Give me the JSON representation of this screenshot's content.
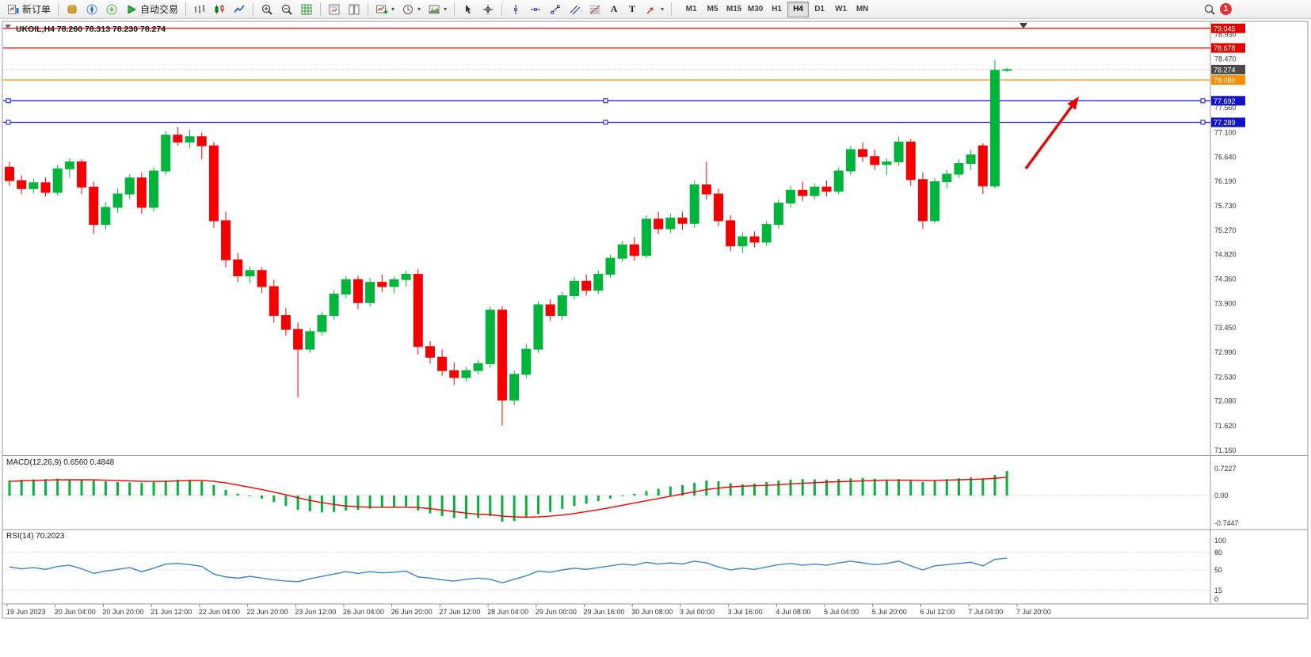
{
  "toolbar": {
    "items": [
      {
        "name": "new-order-button",
        "icon": "new-order",
        "label": "新订单"
      },
      {
        "sep": true
      },
      {
        "name": "market-watch-button",
        "icon": "market-watch"
      },
      {
        "name": "navigator-button",
        "icon": "navigator"
      },
      {
        "name": "terminal-button",
        "icon": "terminal"
      },
      {
        "name": "autotrading-button",
        "icon": "autotrading",
        "label": "自动交易"
      },
      {
        "sep": true
      },
      {
        "name": "bar-chart-button",
        "icon": "chart-bars"
      },
      {
        "name": "candlestick-chart-button",
        "icon": "chart-candles"
      },
      {
        "name": "line-chart-button",
        "icon": "chart-line"
      },
      {
        "sep": true
      },
      {
        "name": "zoom-in-button",
        "icon": "zoom-in"
      },
      {
        "name": "zoom-out-button",
        "icon": "zoom-out"
      },
      {
        "name": "grid-button",
        "icon": "grid"
      },
      {
        "sep": true
      },
      {
        "name": "tile-windows-button",
        "icon": "tile-1"
      },
      {
        "name": "cascade-windows-button",
        "icon": "tile-2"
      },
      {
        "sep": true
      },
      {
        "name": "new-chart-button",
        "icon": "new-chart",
        "caret": true
      },
      {
        "name": "periods-button",
        "icon": "periods",
        "caret": true
      },
      {
        "name": "templates-button",
        "icon": "template",
        "caret": true
      },
      {
        "sep": true
      },
      {
        "name": "cursor-button",
        "icon": "cursor"
      },
      {
        "name": "crosshair-button",
        "icon": "crosshair"
      },
      {
        "sep": true
      },
      {
        "name": "vertical-line-button",
        "icon": "vline-tool"
      },
      {
        "name": "horizontal-line-button",
        "icon": "hline-tool"
      },
      {
        "name": "trendline-button",
        "icon": "trendline-tool"
      },
      {
        "name": "channel-button",
        "icon": "channel-tool"
      },
      {
        "name": "fibonacci-button",
        "icon": "fibo-tool"
      },
      {
        "name": "text-button",
        "glyph": "A"
      },
      {
        "name": "label-button",
        "glyph": "T"
      },
      {
        "name": "shapes-button",
        "icon": "shapes-tool",
        "caret": true
      },
      {
        "sep": true
      }
    ],
    "timeframes": [
      "M1",
      "M5",
      "M15",
      "M30",
      "H1",
      "H4",
      "D1",
      "W1",
      "MN"
    ],
    "active_timeframe": "H4",
    "caret_glyph": "▾",
    "notification_count": "1"
  },
  "chart_data": [
    {
      "type": "candlestick",
      "symbol": "UKOIL",
      "period": "H4",
      "ohlc_title": "UKOIL,H4 78.260 78.313 78.230 78.274",
      "ylim": [
        71.1,
        79.16
      ],
      "up_color": "#00b43c",
      "down_color": "#f40000",
      "price_ticks": [
        78.93,
        78.47,
        77.56,
        77.1,
        76.64,
        76.19,
        75.73,
        75.27,
        74.82,
        74.36,
        73.9,
        73.45,
        72.99,
        72.53,
        72.08,
        71.62,
        71.16
      ],
      "hlines": [
        {
          "price": 79.045,
          "label": "79.045",
          "color": "#e60000",
          "selected": false
        },
        {
          "price": 78.678,
          "label": "78.678",
          "color": "#e60000",
          "selected": false
        },
        {
          "price": 78.08,
          "label": "78.080",
          "color": "#ff8a00",
          "selected": false
        },
        {
          "price": 77.692,
          "label": "77.692",
          "color": "#1212c8",
          "selected": true
        },
        {
          "price": 77.289,
          "label": "77.289",
          "color": "#1212c8",
          "selected": true
        }
      ],
      "last_price": {
        "price": 78.274,
        "label": "78.274",
        "badge_color": "#4a4a4a"
      },
      "annotations": [
        {
          "type": "arrow",
          "color": "#e60000",
          "from": [
            1295,
            213
          ],
          "to": [
            1362,
            122
          ]
        }
      ],
      "candles": [
        [
          76.45,
          76.55,
          76.1,
          76.2
        ],
        [
          76.2,
          76.3,
          75.95,
          76.05
        ],
        [
          76.05,
          76.24,
          75.96,
          76.16
        ],
        [
          76.16,
          76.26,
          75.9,
          75.98
        ],
        [
          75.98,
          76.5,
          75.92,
          76.42
        ],
        [
          76.42,
          76.62,
          76.25,
          76.55
        ],
        [
          76.55,
          76.6,
          75.95,
          76.08
        ],
        [
          76.08,
          76.18,
          75.2,
          75.38
        ],
        [
          75.38,
          75.8,
          75.28,
          75.7
        ],
        [
          75.7,
          76.05,
          75.6,
          75.95
        ],
        [
          75.95,
          76.32,
          75.85,
          76.25
        ],
        [
          76.25,
          76.35,
          75.58,
          75.7
        ],
        [
          75.7,
          76.45,
          75.62,
          76.38
        ],
        [
          76.38,
          77.12,
          76.3,
          77.05
        ],
        [
          77.05,
          77.2,
          76.85,
          76.92
        ],
        [
          76.92,
          77.15,
          76.8,
          77.02
        ],
        [
          77.02,
          77.1,
          76.6,
          76.85
        ],
        [
          76.85,
          76.92,
          75.32,
          75.45
        ],
        [
          75.45,
          75.62,
          74.58,
          74.72
        ],
        [
          74.72,
          74.85,
          74.3,
          74.42
        ],
        [
          74.42,
          74.6,
          74.28,
          74.52
        ],
        [
          74.52,
          74.58,
          74.1,
          74.22
        ],
        [
          74.22,
          74.35,
          73.55,
          73.68
        ],
        [
          73.68,
          73.82,
          73.3,
          73.42
        ],
        [
          73.42,
          73.55,
          72.15,
          73.05
        ],
        [
          73.05,
          73.45,
          72.98,
          73.38
        ],
        [
          73.38,
          73.75,
          73.3,
          73.68
        ],
        [
          73.68,
          74.15,
          73.6,
          74.08
        ],
        [
          74.08,
          74.42,
          74.0,
          74.35
        ],
        [
          74.35,
          74.42,
          73.8,
          73.92
        ],
        [
          73.92,
          74.38,
          73.85,
          74.3
        ],
        [
          74.3,
          74.45,
          74.12,
          74.22
        ],
        [
          74.22,
          74.4,
          74.1,
          74.35
        ],
        [
          74.35,
          74.52,
          74.22,
          74.45
        ],
        [
          74.45,
          74.55,
          72.95,
          73.1
        ],
        [
          73.1,
          73.2,
          72.78,
          72.9
        ],
        [
          72.9,
          73.05,
          72.55,
          72.65
        ],
        [
          72.65,
          72.8,
          72.38,
          72.52
        ],
        [
          72.52,
          72.72,
          72.45,
          72.65
        ],
        [
          72.65,
          72.85,
          72.58,
          72.78
        ],
        [
          72.78,
          73.85,
          72.7,
          73.78
        ],
        [
          73.78,
          73.85,
          71.62,
          72.1
        ],
        [
          72.1,
          72.65,
          72.0,
          72.58
        ],
        [
          72.58,
          73.15,
          72.5,
          73.05
        ],
        [
          73.05,
          73.95,
          72.98,
          73.88
        ],
        [
          73.88,
          73.98,
          73.58,
          73.68
        ],
        [
          73.68,
          74.12,
          73.6,
          74.05
        ],
        [
          74.05,
          74.4,
          73.98,
          74.32
        ],
        [
          74.32,
          74.45,
          74.05,
          74.15
        ],
        [
          74.15,
          74.52,
          74.08,
          74.45
        ],
        [
          74.45,
          74.82,
          74.38,
          74.75
        ],
        [
          74.75,
          75.08,
          74.68,
          75.0
        ],
        [
          75.0,
          75.15,
          74.7,
          74.8
        ],
        [
          74.8,
          75.55,
          74.75,
          75.48
        ],
        [
          75.48,
          75.62,
          75.2,
          75.3
        ],
        [
          75.3,
          75.58,
          75.22,
          75.5
        ],
        [
          75.5,
          75.62,
          75.28,
          75.4
        ],
        [
          75.4,
          76.2,
          75.32,
          76.12
        ],
        [
          76.12,
          76.55,
          75.85,
          75.95
        ],
        [
          75.95,
          76.05,
          75.35,
          75.45
        ],
        [
          75.45,
          75.55,
          74.88,
          74.98
        ],
        [
          74.98,
          75.22,
          74.85,
          75.15
        ],
        [
          75.15,
          75.25,
          74.95,
          75.05
        ],
        [
          75.05,
          75.45,
          74.98,
          75.38
        ],
        [
          75.38,
          75.85,
          75.3,
          75.78
        ],
        [
          75.78,
          76.1,
          75.7,
          76.02
        ],
        [
          76.02,
          76.18,
          75.82,
          75.92
        ],
        [
          75.92,
          76.15,
          75.85,
          76.08
        ],
        [
          76.08,
          76.2,
          75.9,
          76.0
        ],
        [
          76.0,
          76.45,
          75.95,
          76.38
        ],
        [
          76.38,
          76.85,
          76.3,
          76.78
        ],
        [
          76.78,
          76.92,
          76.55,
          76.65
        ],
        [
          76.65,
          76.78,
          76.4,
          76.5
        ],
        [
          76.5,
          76.62,
          76.3,
          76.55
        ],
        [
          76.55,
          77.02,
          76.48,
          76.92
        ],
        [
          76.92,
          76.98,
          76.1,
          76.22
        ],
        [
          76.22,
          76.35,
          75.3,
          75.45
        ],
        [
          75.45,
          76.25,
          75.4,
          76.18
        ],
        [
          76.18,
          76.4,
          76.05,
          76.32
        ],
        [
          76.32,
          76.6,
          76.25,
          76.52
        ],
        [
          76.52,
          76.78,
          76.4,
          76.68
        ],
        [
          76.85,
          76.9,
          75.95,
          76.1
        ],
        [
          76.1,
          78.45,
          76.05,
          78.26
        ],
        [
          78.26,
          78.313,
          78.23,
          78.274
        ]
      ]
    },
    {
      "type": "macd_histogram",
      "name": "MACD",
      "label": "MACD(12,26,9) 0.6560 0.4848",
      "values_text": {
        "macd": "0.6560",
        "signal": "0.4848"
      },
      "histogram_color": "#00b43c",
      "signal_color": "#f40000",
      "scale": [
        {
          "value": 0.7227,
          "label": "0.7227"
        },
        {
          "value": 0,
          "label": "0.00"
        },
        {
          "value": -0.7447,
          "label": "-0.7447"
        }
      ],
      "histogram": [
        0.4,
        0.42,
        0.43,
        0.44,
        0.45,
        0.44,
        0.42,
        0.4,
        0.38,
        0.36,
        0.35,
        0.34,
        0.36,
        0.4,
        0.42,
        0.42,
        0.38,
        0.28,
        0.15,
        0.05,
        -0.02,
        -0.08,
        -0.18,
        -0.28,
        -0.38,
        -0.42,
        -0.45,
        -0.44,
        -0.4,
        -0.38,
        -0.35,
        -0.33,
        -0.31,
        -0.29,
        -0.4,
        -0.48,
        -0.55,
        -0.6,
        -0.62,
        -0.6,
        -0.55,
        -0.7,
        -0.68,
        -0.6,
        -0.5,
        -0.44,
        -0.36,
        -0.28,
        -0.22,
        -0.15,
        -0.08,
        -0.02,
        0.05,
        0.12,
        0.18,
        0.24,
        0.28,
        0.34,
        0.4,
        0.38,
        0.33,
        0.3,
        0.32,
        0.36,
        0.4,
        0.42,
        0.44,
        0.43,
        0.42,
        0.44,
        0.46,
        0.47,
        0.45,
        0.43,
        0.44,
        0.4,
        0.36,
        0.4,
        0.44,
        0.46,
        0.48,
        0.46,
        0.55,
        0.656
      ],
      "signal": [
        0.38,
        0.39,
        0.4,
        0.41,
        0.42,
        0.42,
        0.42,
        0.42,
        0.41,
        0.4,
        0.39,
        0.38,
        0.38,
        0.38,
        0.39,
        0.4,
        0.4,
        0.38,
        0.34,
        0.28,
        0.22,
        0.16,
        0.09,
        0.02,
        -0.06,
        -0.13,
        -0.19,
        -0.24,
        -0.28,
        -0.3,
        -0.31,
        -0.31,
        -0.31,
        -0.31,
        -0.32,
        -0.35,
        -0.39,
        -0.43,
        -0.47,
        -0.5,
        -0.51,
        -0.55,
        -0.57,
        -0.58,
        -0.57,
        -0.55,
        -0.52,
        -0.48,
        -0.43,
        -0.38,
        -0.32,
        -0.26,
        -0.2,
        -0.14,
        -0.08,
        -0.02,
        0.04,
        0.1,
        0.16,
        0.2,
        0.23,
        0.25,
        0.26,
        0.27,
        0.29,
        0.31,
        0.33,
        0.34,
        0.36,
        0.37,
        0.38,
        0.39,
        0.4,
        0.41,
        0.41,
        0.41,
        0.4,
        0.4,
        0.41,
        0.42,
        0.43,
        0.44,
        0.46,
        0.4848
      ]
    },
    {
      "type": "line",
      "name": "RSI",
      "label": "RSI(14) 70.2023",
      "current_value": "70.2023",
      "color": "#3d85c8",
      "ylim": [
        0,
        100
      ],
      "levels": [
        80,
        50,
        15
      ],
      "scale": [
        {
          "value": 100,
          "label": "100"
        },
        {
          "value": 80,
          "label": "80"
        },
        {
          "value": 50,
          "label": "50"
        },
        {
          "value": 15,
          "label": "15"
        },
        {
          "value": 0,
          "label": "0"
        }
      ],
      "values": [
        55,
        52,
        54,
        51,
        56,
        58,
        52,
        44,
        48,
        51,
        54,
        47,
        53,
        60,
        61,
        59,
        56,
        43,
        38,
        36,
        39,
        36,
        33,
        31,
        30,
        35,
        39,
        43,
        47,
        44,
        47,
        45,
        46,
        48,
        38,
        36,
        33,
        31,
        34,
        36,
        34,
        28,
        34,
        40,
        48,
        46,
        50,
        53,
        51,
        54,
        57,
        60,
        58,
        63,
        60,
        62,
        60,
        65,
        62,
        55,
        50,
        53,
        51,
        55,
        59,
        61,
        58,
        60,
        58,
        62,
        65,
        62,
        59,
        61,
        65,
        57,
        50,
        57,
        59,
        61,
        63,
        57,
        68,
        70.2
      ]
    }
  ],
  "time_axis": {
    "labels": [
      "19 Jun 2023",
      "20 Jun 04:00",
      "20 Jun 20:00",
      "21 Jun 12:00",
      "22 Jun 04:00",
      "22 Jun 20:00",
      "23 Jun 12:00",
      "26 Jun 04:00",
      "26 Jun 20:00",
      "27 Jun 12:00",
      "28 Jun 04:00",
      "29 Jun 00:00",
      "29 Jun 16:00",
      "30 Jun 08:00",
      "3 Jul 00:00",
      "3 Jul 16:00",
      "4 Jul 08:00",
      "5 Jul 04:00",
      "5 Jul 20:00",
      "6 Jul 12:00",
      "7 Jul 04:00",
      "7 Jul 20:00"
    ]
  }
}
